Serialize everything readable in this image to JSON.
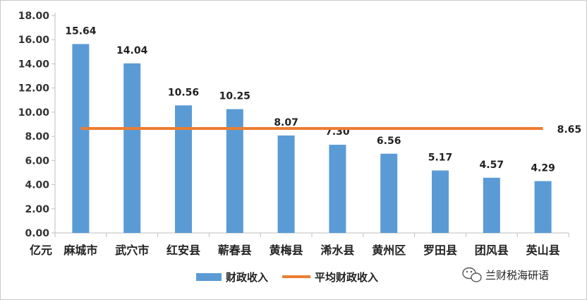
{
  "chart_data": {
    "type": "bar",
    "y_unit": "亿元",
    "categories": [
      "麻城市",
      "武穴市",
      "红安县",
      "蕲春县",
      "黄梅县",
      "浠水县",
      "黄州区",
      "罗田县",
      "团风县",
      "英山县"
    ],
    "series": [
      {
        "name": "财政收入",
        "type": "bar",
        "values": [
          15.64,
          14.04,
          10.56,
          10.25,
          8.07,
          7.3,
          6.56,
          5.17,
          4.57,
          4.29
        ]
      },
      {
        "name": "平均财政收入",
        "type": "line",
        "value": 8.65
      }
    ],
    "ylim": [
      0,
      18
    ],
    "yticks": [
      "0.00",
      "2.00",
      "4.00",
      "6.00",
      "8.00",
      "10.00",
      "12.00",
      "14.00",
      "16.00",
      "18.00"
    ],
    "data_labels": [
      "15.64",
      "14.04",
      "10.56",
      "10.25",
      "8.07",
      "7.30",
      "6.56",
      "5.17",
      "4.57",
      "4.29"
    ],
    "average_label": "8.65",
    "grid": false,
    "legend_position": "bottom",
    "colors": {
      "bar": "#5b9bd5",
      "line": "#ed7d31"
    }
  },
  "watermark": {
    "text": "兰财税海研语",
    "icon": "wechat-icon"
  }
}
